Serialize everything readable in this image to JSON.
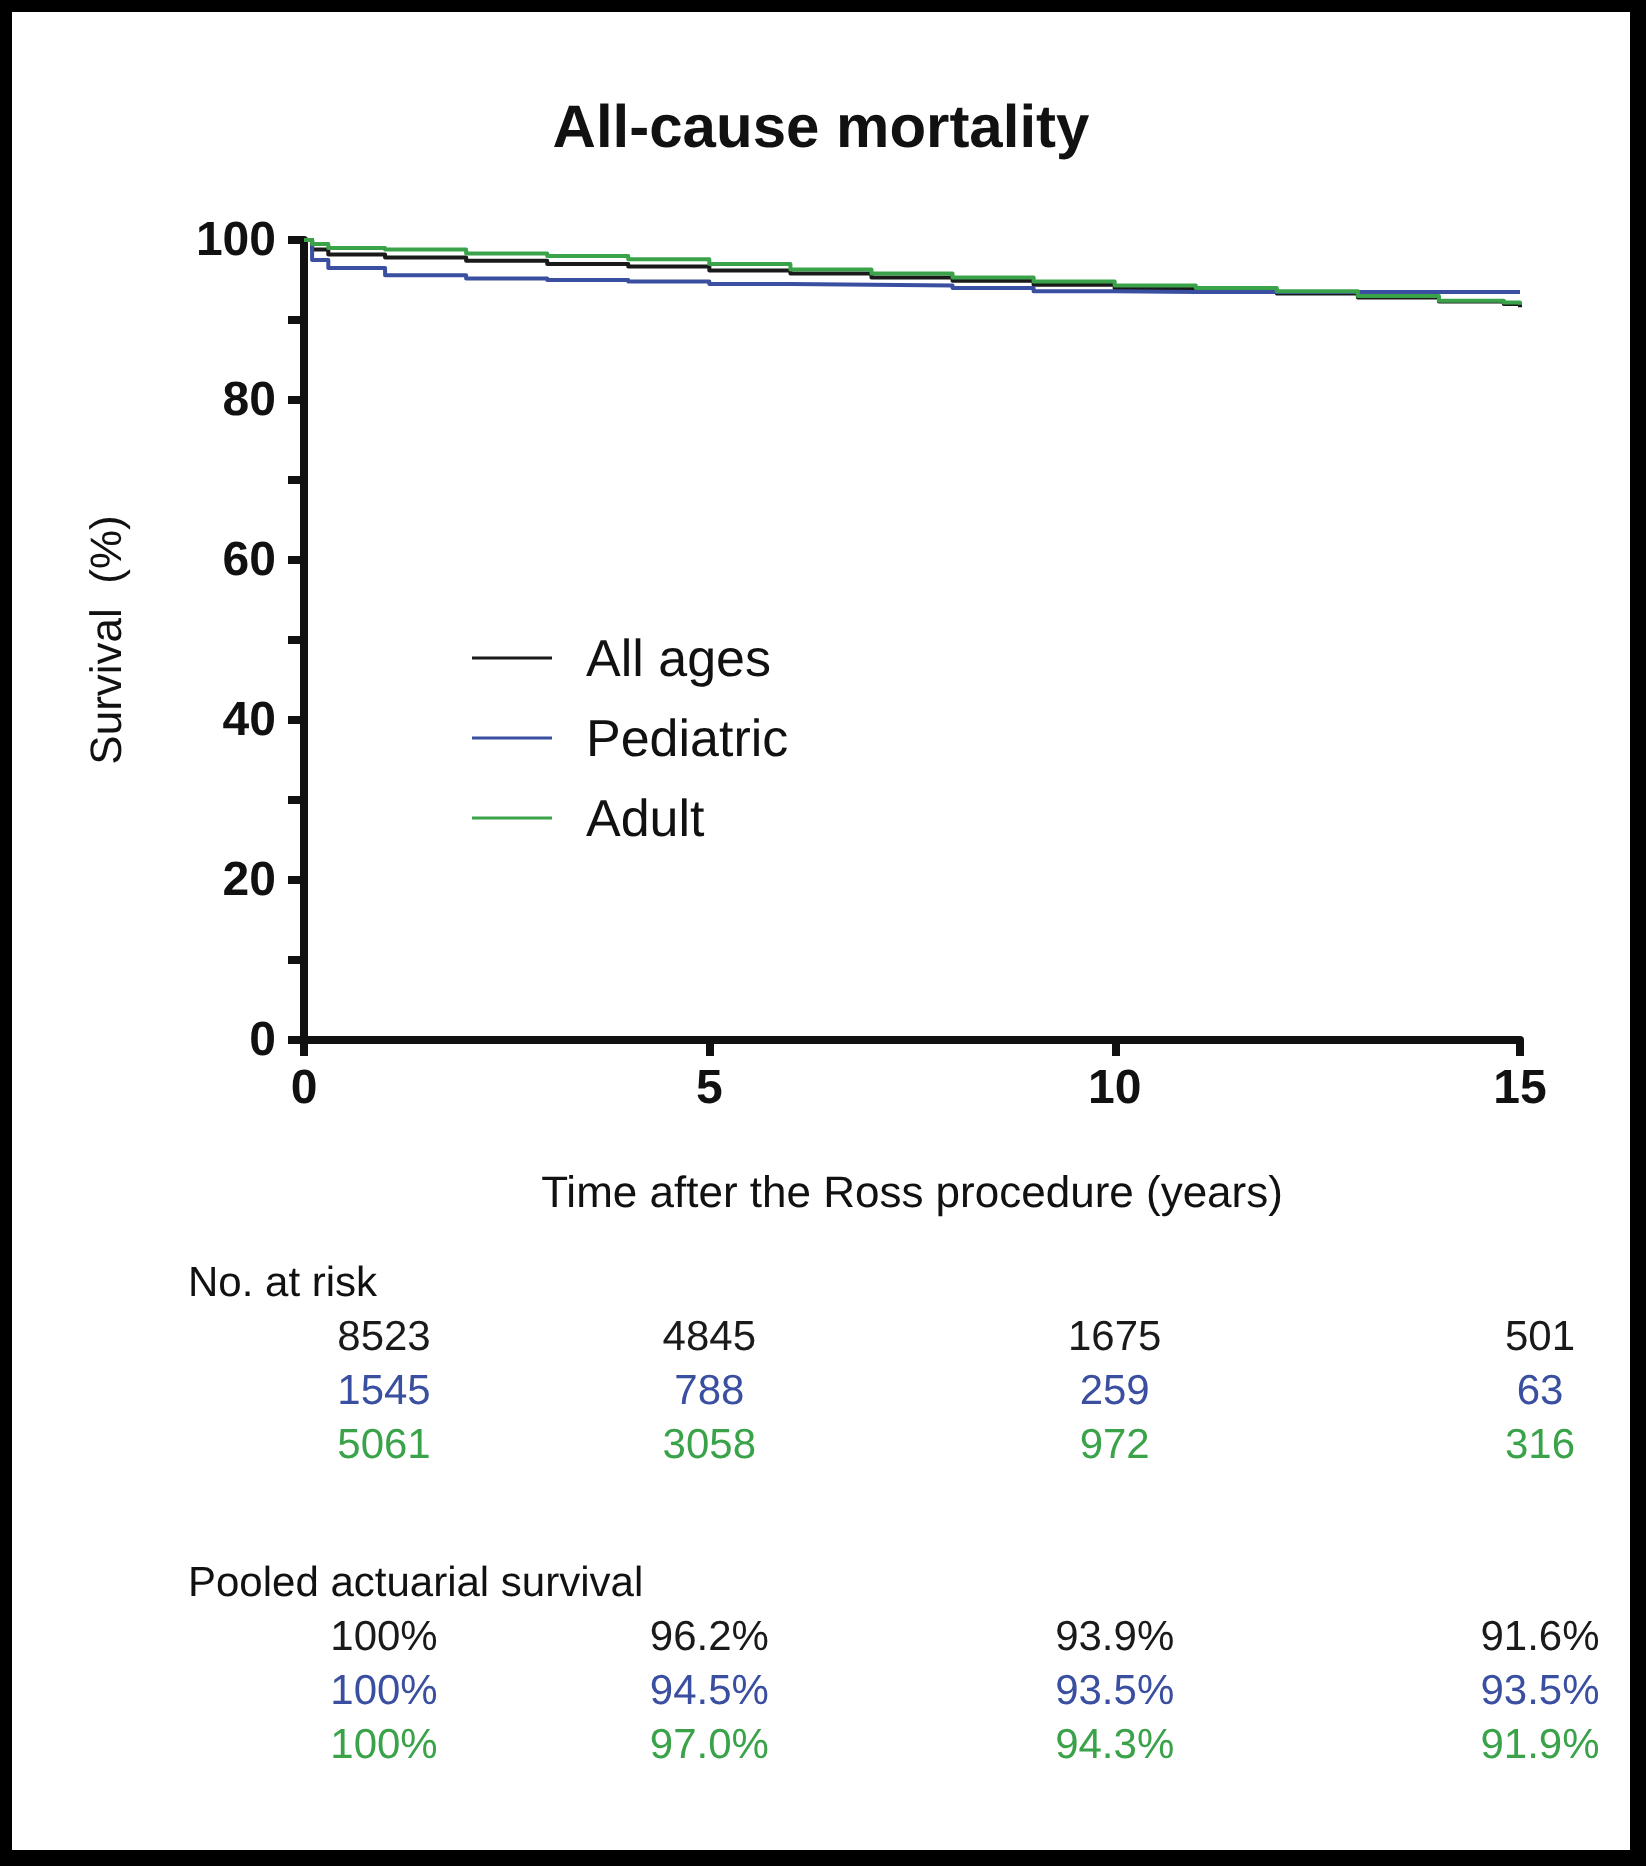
{
  "chart_data": {
    "type": "step",
    "title": "All-cause mortality",
    "xlabel": "Time after the Ross procedure (years)",
    "ylabel": "Survival  (%)",
    "x": [
      0,
      0.1,
      0.3,
      1,
      2,
      3,
      4,
      5,
      6,
      7,
      8,
      9,
      10,
      11,
      12,
      13,
      14,
      14.8,
      15
    ],
    "series": [
      {
        "name": "All ages",
        "color": "#1a1a1a",
        "values": [
          100,
          98.8,
          98.2,
          97.8,
          97.4,
          97.0,
          96.7,
          96.2,
          95.8,
          95.3,
          94.9,
          94.4,
          93.9,
          93.6,
          93.3,
          92.8,
          92.3,
          92.0,
          91.6
        ]
      },
      {
        "name": "Pediatric",
        "color": "#3a4fa0",
        "values": [
          100,
          97.5,
          96.5,
          95.6,
          95.2,
          95.0,
          94.8,
          94.5,
          94.4,
          94.3,
          94.0,
          93.6,
          93.5,
          93.5,
          93.5,
          93.5,
          93.5,
          93.5,
          93.5
        ]
      },
      {
        "name": "Adult",
        "color": "#3aa34a",
        "values": [
          100,
          99.5,
          99.0,
          98.8,
          98.3,
          98.0,
          97.6,
          97.0,
          96.3,
          95.8,
          95.3,
          94.8,
          94.3,
          94.0,
          93.6,
          93.0,
          92.4,
          92.2,
          91.9
        ]
      }
    ],
    "xlim": [
      0,
      15
    ],
    "xticks": [
      0,
      5,
      10,
      15
    ],
    "ylim": [
      0,
      100
    ],
    "yticks": [
      0,
      {
        "value": 10,
        "label": null
      },
      20,
      {
        "value": 30,
        "label": null
      },
      40,
      {
        "value": 50,
        "label": null
      },
      60,
      {
        "value": 70,
        "label": null
      },
      80,
      {
        "value": 90,
        "label": null
      },
      100
    ],
    "grid": false,
    "legend": "left",
    "marker": "none",
    "line_style": "solid",
    "annotations": [
      "No. at risk",
      "8523",
      "4845",
      "1675",
      "501",
      "1545",
      "788",
      "259",
      "63",
      "5061",
      "3058",
      "972",
      "316",
      "Pooled actuarial survival",
      "100%",
      "96.2%",
      "93.9%",
      "91.6%",
      "100%",
      "94.5%",
      "93.5%",
      "93.5%",
      "100%",
      "97.0%",
      "94.3%",
      "91.9%"
    ]
  }
}
